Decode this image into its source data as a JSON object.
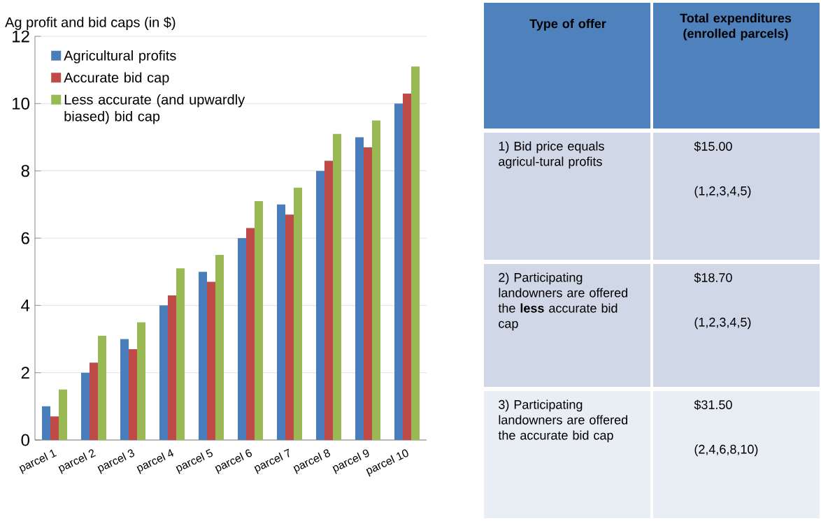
{
  "chart_data": [
    {
      "type": "bar",
      "ylabel": "Ag profit and bid caps (in $)",
      "categories": [
        "parcel  1",
        "parcel 2",
        "parcel 3",
        "parcel 4",
        "parcel 5",
        "parcel 6",
        "parcel 7",
        "parcel 8",
        "parcel 9",
        "parcel 10"
      ],
      "series": [
        {
          "name": "Agricultural  profits",
          "color": "#4a7ebb",
          "values": [
            1,
            2,
            3,
            4,
            5,
            6,
            7,
            8,
            9,
            10
          ]
        },
        {
          "name": "Accurate bid cap",
          "color": "#be4b48",
          "values": [
            0.7,
            2.3,
            2.7,
            4.3,
            4.7,
            6.3,
            6.7,
            8.3,
            8.7,
            10.3
          ]
        },
        {
          "name": "Less accurate (and upwardly biased) bid cap",
          "color": "#98b954",
          "values": [
            1.5,
            3.1,
            3.5,
            5.1,
            5.5,
            7.1,
            7.5,
            9.1,
            9.5,
            11.1
          ]
        }
      ],
      "ylim": [
        0,
        12
      ],
      "yticks": [
        0,
        2,
        4,
        6,
        8,
        10,
        12
      ],
      "grid": "y",
      "legend": "top left"
    },
    {
      "type": "other",
      "annotations": [
        "Type of offer",
        "Total expenditures (enrolled parcels)",
        "1) Bid price equals agricul-tural profits",
        "$15.00",
        "(1,2,3,4,5)",
        "2) Participating landowners are offered the **less** accurate bid cap",
        "$18.70",
        "(1,2,3,4,5)",
        "3) Participating landowners are offered  the accurate bid cap",
        "$31.50",
        "(2,4,6,8,10)"
      ]
    }
  ]
}
